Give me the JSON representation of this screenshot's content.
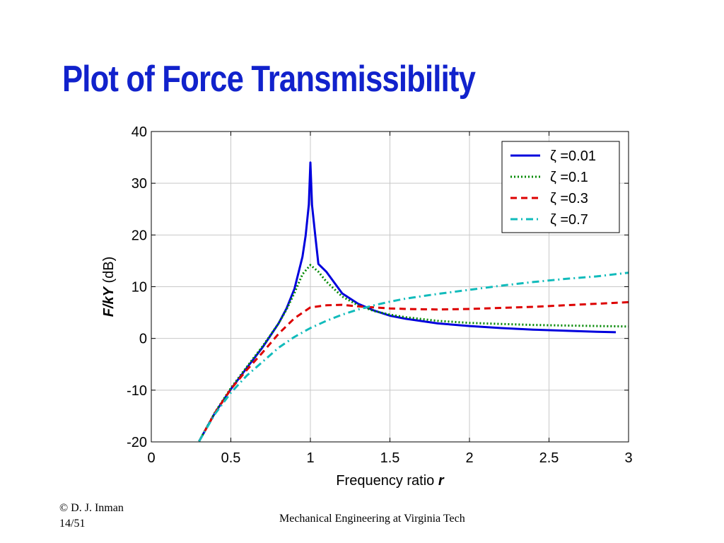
{
  "slide": {
    "title": "Plot of Force Transmissibility",
    "copyright": "© D. J. Inman",
    "page": "14/51",
    "footer": "Mechanical Engineering at Virginia Tech"
  },
  "chart_data": {
    "type": "line",
    "xlabel": "Frequency ratio r",
    "xlabel_parts": [
      "Frequency ratio ",
      "r"
    ],
    "ylabel": "F/kY (dB)",
    "ylabel_parts": [
      "F/kY",
      " (dB)"
    ],
    "xlim": [
      0,
      3
    ],
    "ylim": [
      -20,
      40
    ],
    "xticks": [
      0,
      0.5,
      1,
      1.5,
      2,
      2.5,
      3
    ],
    "xtick_labels": [
      "0",
      "0.5",
      "1",
      "1.5",
      "2",
      "2.5",
      "3"
    ],
    "yticks": [
      -20,
      -10,
      0,
      10,
      20,
      30,
      40
    ],
    "ytick_labels": [
      "-20",
      "-10",
      "0",
      "10",
      "20",
      "30",
      "40"
    ],
    "grid": true,
    "legend_position": "top-right",
    "series": [
      {
        "name": "ζ =0.01",
        "zeta": 0.01,
        "color": "#0000dd",
        "style": "solid",
        "x": [
          0.3,
          0.4,
          0.5,
          0.6,
          0.7,
          0.8,
          0.85,
          0.9,
          0.95,
          0.97,
          0.99,
          1.0,
          1.01,
          1.03,
          1.05,
          1.1,
          1.2,
          1.3,
          1.4,
          1.5,
          1.6,
          1.8,
          2.0,
          2.2,
          2.4,
          2.6,
          2.8,
          2.92
        ],
        "y": [
          -19.9,
          -14.4,
          -9.8,
          -5.7,
          -1.7,
          2.9,
          5.8,
          9.6,
          15.8,
          19.9,
          25.9,
          34.0,
          25.8,
          20.0,
          14.4,
          12.9,
          8.7,
          6.7,
          5.4,
          4.4,
          3.8,
          2.9,
          2.4,
          2.0,
          1.7,
          1.5,
          1.3,
          1.2
        ]
      },
      {
        "name": "ζ =0.1",
        "zeta": 0.1,
        "color": "#008800",
        "style": "dotted",
        "x": [
          0.3,
          0.4,
          0.5,
          0.6,
          0.7,
          0.8,
          0.85,
          0.9,
          0.95,
          1.0,
          1.05,
          1.1,
          1.2,
          1.3,
          1.4,
          1.5,
          1.6,
          1.8,
          2.0,
          2.2,
          2.4,
          2.6,
          2.8,
          3.0
        ],
        "y": [
          -19.9,
          -14.3,
          -9.6,
          -5.5,
          -1.5,
          2.9,
          5.6,
          8.8,
          12.4,
          14.2,
          12.9,
          11.0,
          8.1,
          6.4,
          5.3,
          4.6,
          4.1,
          3.4,
          3.0,
          2.8,
          2.6,
          2.5,
          2.4,
          2.3
        ]
      },
      {
        "name": "ζ =0.3",
        "zeta": 0.3,
        "color": "#dd0000",
        "style": "dashed",
        "x": [
          0.3,
          0.4,
          0.5,
          0.6,
          0.7,
          0.8,
          0.9,
          1.0,
          1.1,
          1.2,
          1.3,
          1.4,
          1.5,
          1.6,
          1.8,
          2.0,
          2.2,
          2.4,
          2.6,
          2.8,
          3.0
        ],
        "y": [
          -19.9,
          -14.4,
          -9.8,
          -6.1,
          -2.7,
          0.9,
          3.9,
          6.0,
          6.4,
          6.5,
          6.2,
          6.0,
          5.8,
          5.7,
          5.6,
          5.7,
          5.9,
          6.1,
          6.4,
          6.7,
          7.0
        ]
      },
      {
        "name": "ζ =0.7",
        "zeta": 0.7,
        "color": "#11bbbb",
        "style": "dashdot",
        "x": [
          0.3,
          0.4,
          0.5,
          0.6,
          0.7,
          0.8,
          0.9,
          1.0,
          1.1,
          1.2,
          1.3,
          1.4,
          1.5,
          1.6,
          1.8,
          2.0,
          2.2,
          2.4,
          2.6,
          2.8,
          3.0
        ],
        "y": [
          -19.9,
          -14.6,
          -10.5,
          -7.2,
          -4.5,
          -1.8,
          0.3,
          2.0,
          3.4,
          4.6,
          5.6,
          6.4,
          7.1,
          7.7,
          8.6,
          9.4,
          10.2,
          10.9,
          11.5,
          12.0,
          12.7
        ]
      }
    ]
  }
}
